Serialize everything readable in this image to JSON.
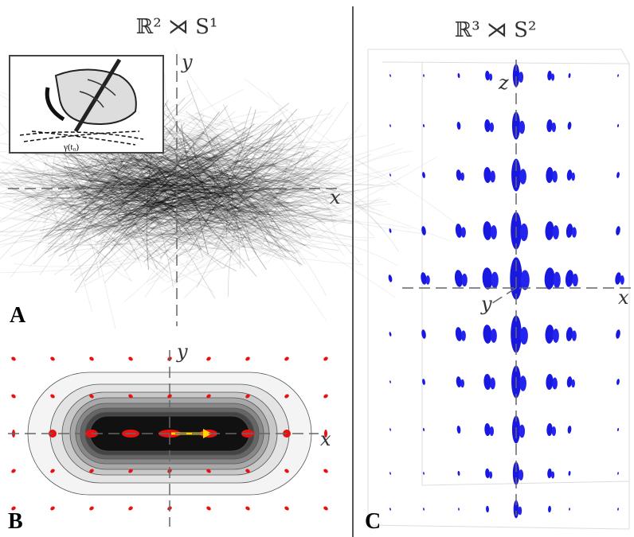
{
  "panels": [
    {
      "label": "A",
      "title": "ℝ² ⋊ S¹",
      "axes": {
        "x": "x",
        "y": "y"
      },
      "inset": {
        "label": "γ(t₀)"
      }
    },
    {
      "label": "B",
      "axes": {
        "x": "x",
        "y": "y"
      }
    },
    {
      "label": "C",
      "title": "ℝ³ ⋊ S²",
      "axes": {
        "x": "x",
        "y": "y",
        "z": "z"
      }
    }
  ]
}
